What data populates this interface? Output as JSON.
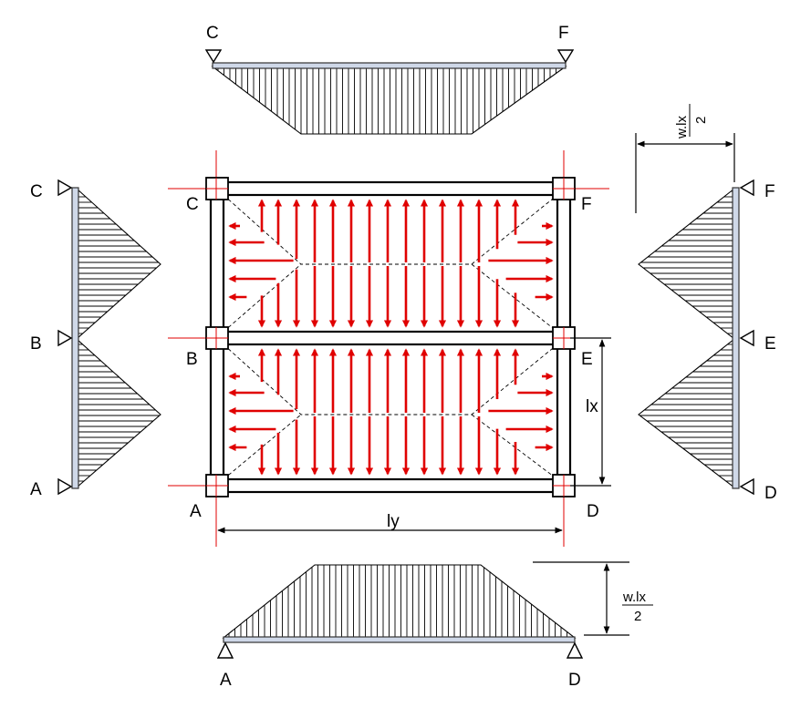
{
  "colors": {
    "load_arrow": "#e00000",
    "beam_fill": "#cfd8e8",
    "line": "#000000"
  },
  "plan": {
    "node_labels": {
      "A": "A",
      "B": "B",
      "C": "C",
      "D": "D",
      "E": "E",
      "F": "F"
    },
    "dim_ly": "ly",
    "dim_lx": "lx"
  },
  "beams": {
    "top": {
      "left_label": "C",
      "right_label": "F"
    },
    "bottom": {
      "left_label": "A",
      "right_label": "D",
      "load_numerator": "w.lx",
      "load_denominator": "2"
    },
    "left": {
      "top_label": "C",
      "mid_label": "B",
      "bottom_label": "A"
    },
    "right": {
      "top_label": "F",
      "mid_label": "E",
      "bottom_label": "D",
      "load_numerator": "w.lx",
      "load_denominator": "2"
    }
  }
}
